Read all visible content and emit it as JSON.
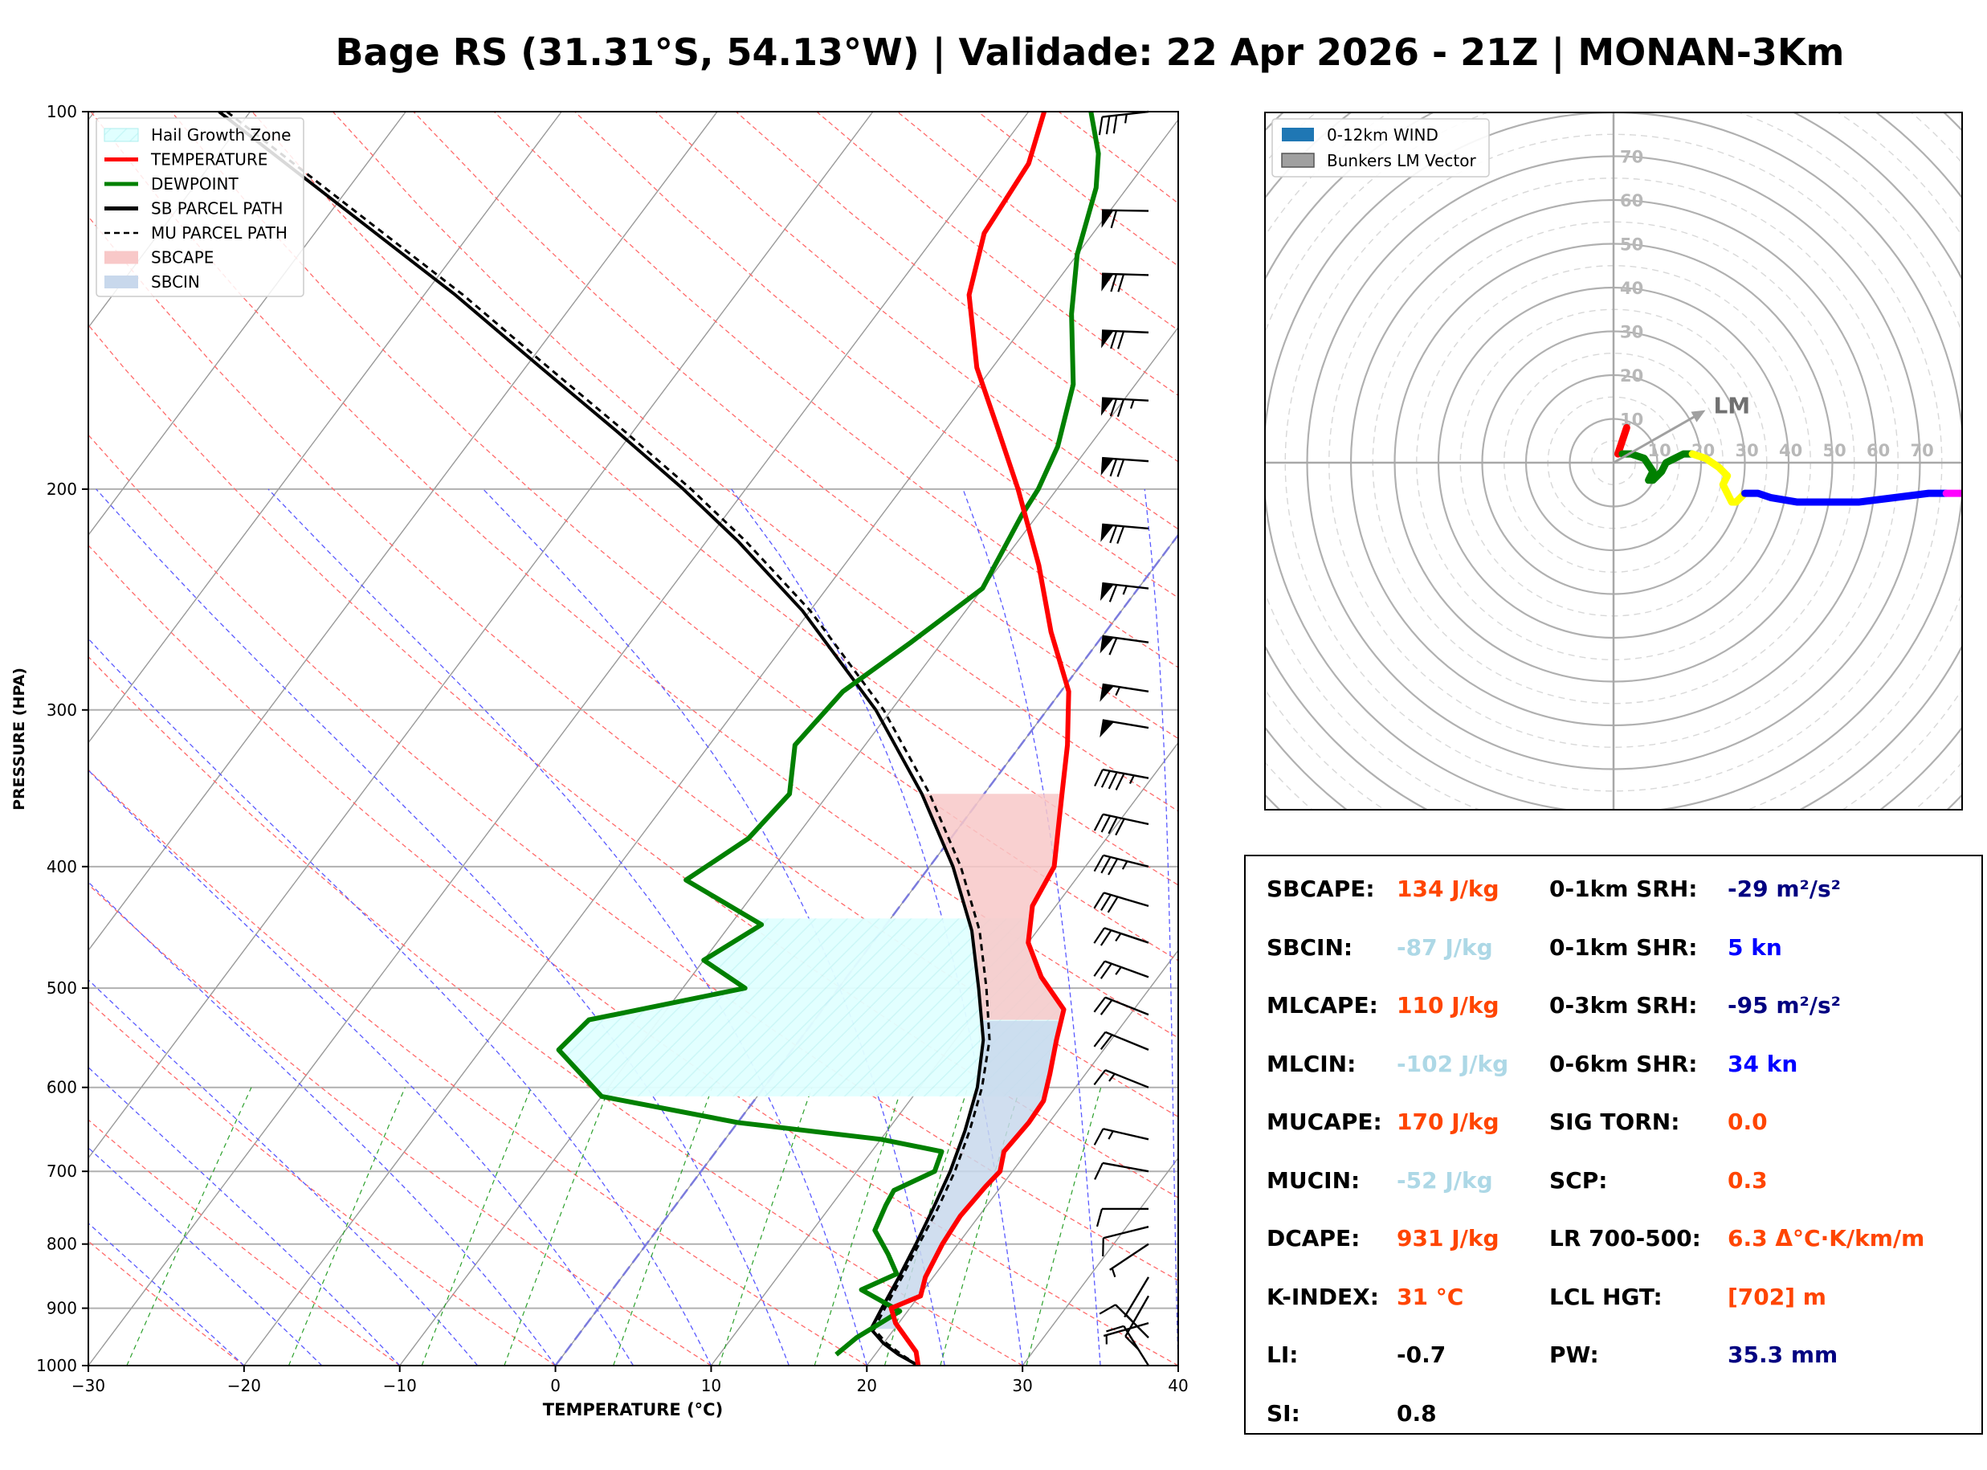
{
  "title": "Bage RS (31.31°S, 54.13°W) | Validade: 22 Apr 2026 - 21Z | MONAN-3Km",
  "skewt": {
    "xlabel": "TEMPERATURE (°C)",
    "ylabel": "PRESSURE (HPA)",
    "x_ticks": [
      "−30",
      "−20",
      "−10",
      "0",
      "10",
      "20",
      "30",
      "40"
    ],
    "y_ticks": [
      "100",
      "200",
      "300",
      "400",
      "500",
      "600",
      "700",
      "800",
      "900",
      "1000"
    ],
    "legend": [
      {
        "label": "Hail Growth Zone",
        "color": "#e0ffff",
        "kind": "patch-hatch"
      },
      {
        "label": "TEMPERATURE",
        "color": "#ff0000",
        "kind": "line"
      },
      {
        "label": "DEWPOINT",
        "color": "#008000",
        "kind": "line"
      },
      {
        "label": "SB PARCEL PATH",
        "color": "#000000",
        "kind": "line"
      },
      {
        "label": "MU PARCEL PATH",
        "color": "#000000",
        "kind": "dash"
      },
      {
        "label": "SBCAPE",
        "color": "#f8c8c8",
        "kind": "patch"
      },
      {
        "label": "SBCIN",
        "color": "#c8d8ec",
        "kind": "patch"
      }
    ]
  },
  "hodograph": {
    "legend": [
      {
        "label": "0-12km WIND",
        "color": "#1f77b4"
      },
      {
        "label": "Bunkers LM Vector",
        "color": "#a0a0a0"
      }
    ],
    "ring_labels": [
      "10",
      "20",
      "30",
      "40",
      "50",
      "60",
      "70"
    ],
    "lm_label": "LM"
  },
  "indices": {
    "left": [
      {
        "label": "SBCAPE:",
        "value": "134 J/kg",
        "color": "#ff4500"
      },
      {
        "label": "SBCIN:",
        "value": "-87 J/kg",
        "color": "#add8e6"
      },
      {
        "label": "MLCAPE:",
        "value": "110 J/kg",
        "color": "#ff4500"
      },
      {
        "label": "MLCIN:",
        "value": "-102 J/kg",
        "color": "#add8e6"
      },
      {
        "label": "MUCAPE:",
        "value": "170 J/kg",
        "color": "#ff4500"
      },
      {
        "label": "MUCIN:",
        "value": "-52 J/kg",
        "color": "#add8e6"
      },
      {
        "label": "DCAPE:",
        "value": "931 J/kg",
        "color": "#ff4500"
      },
      {
        "label": "K-INDEX:",
        "value": "31 °C",
        "color": "#ff4500"
      },
      {
        "label": "LI:",
        "value": "-0.7",
        "color": "#000000"
      },
      {
        "label": "SI:",
        "value": "0.8",
        "color": "#000000"
      }
    ],
    "right": [
      {
        "label": "0-1km SRH:",
        "value": "-29 m²/s²",
        "color": "#000080"
      },
      {
        "label": "0-1km SHR:",
        "value": "5 kn",
        "color": "#0000ff"
      },
      {
        "label": "0-3km SRH:",
        "value": "-95 m²/s²",
        "color": "#000080"
      },
      {
        "label": "0-6km SHR:",
        "value": "34 kn",
        "color": "#0000ff"
      },
      {
        "label": "SIG TORN:",
        "value": "0.0",
        "color": "#ff4500"
      },
      {
        "label": "SCP:",
        "value": "0.3",
        "color": "#ff4500"
      },
      {
        "label": "LR 700-500:",
        "value": "6.3 Δ°C·K/km/m",
        "color": "#ff4500"
      },
      {
        "label": "LCL HGT:",
        "value": "[702] m",
        "color": "#ff4500"
      },
      {
        "label": "PW:",
        "value": "35.3 mm",
        "color": "#000080"
      }
    ]
  },
  "chart_data": [
    {
      "type": "line",
      "xlabel": "TEMPERATURE (°C)",
      "ylabel": "PRESSURE (HPA)",
      "xlim": [
        -30,
        40
      ],
      "ylim": [
        1000,
        100
      ],
      "y_scale": "log",
      "grid": true,
      "legend_position": "top-left",
      "series": [
        {
          "name": "TEMPERATURE",
          "color": "#ff0000",
          "points": [
            [
              1000,
              23.3
            ],
            [
              975,
              22.5
            ],
            [
              925,
              19.8
            ],
            [
              900,
              18.8
            ],
            [
              880,
              20.1
            ],
            [
              850,
              19.5
            ],
            [
              800,
              19.0
            ],
            [
              760,
              18.8
            ],
            [
              720,
              19.0
            ],
            [
              700,
              19.2
            ],
            [
              675,
              18.5
            ],
            [
              640,
              18.7
            ],
            [
              615,
              18.6
            ],
            [
              585,
              17.7
            ],
            [
              550,
              16.5
            ],
            [
              520,
              15.5
            ],
            [
              490,
              12.5
            ],
            [
              460,
              10.0
            ],
            [
              430,
              8.5
            ],
            [
              400,
              8.0
            ],
            [
              350,
              5.0
            ],
            [
              320,
              3.0
            ],
            [
              290,
              0.5
            ],
            [
              260,
              -3.5
            ],
            [
              230,
              -7.5
            ],
            [
              200,
              -12.5
            ],
            [
              180,
              -16.5
            ],
            [
              160,
              -21.0
            ],
            [
              140,
              -25.0
            ],
            [
              125,
              -27.0
            ],
            [
              110,
              -27.5
            ],
            [
              100,
              -29.0
            ]
          ]
        },
        {
          "name": "DEWPOINT",
          "color": "#008000",
          "points": [
            [
              980,
              17.5
            ],
            [
              950,
              18.0
            ],
            [
              920,
              19.0
            ],
            [
              905,
              19.5
            ],
            [
              870,
              16.0
            ],
            [
              845,
              17.5
            ],
            [
              815,
              16.0
            ],
            [
              780,
              14.0
            ],
            [
              745,
              13.5
            ],
            [
              725,
              13.3
            ],
            [
              700,
              15.0
            ],
            [
              675,
              14.5
            ],
            [
              660,
              10.0
            ],
            [
              640,
              0.0
            ],
            [
              610,
              -10.0
            ],
            [
              560,
              -15.0
            ],
            [
              530,
              -14.5
            ],
            [
              500,
              -6.0
            ],
            [
              475,
              -10.0
            ],
            [
              445,
              -8.0
            ],
            [
              410,
              -15.0
            ],
            [
              380,
              -13.0
            ],
            [
              350,
              -12.5
            ],
            [
              320,
              -14.5
            ],
            [
              290,
              -14.0
            ],
            [
              265,
              -12.0
            ],
            [
              240,
              -10.0
            ],
            [
              210,
              -11.0
            ],
            [
              200,
              -11.2
            ],
            [
              185,
              -12.0
            ],
            [
              165,
              -14.0
            ],
            [
              145,
              -17.5
            ],
            [
              130,
              -20.0
            ],
            [
              115,
              -22.0
            ],
            [
              108,
              -23.5
            ],
            [
              100,
              -26.0
            ]
          ]
        },
        {
          "name": "SB PARCEL PATH",
          "color": "#000000",
          "points": [
            [
              1000,
              23.3
            ],
            [
              980,
              21.5
            ],
            [
              960,
              20.0
            ],
            [
              935,
              18.5
            ],
            [
              900,
              18.2
            ],
            [
              850,
              17.8
            ],
            [
              800,
              17.3
            ],
            [
              750,
              16.7
            ],
            [
              700,
              16.0
            ],
            [
              650,
              15.0
            ],
            [
              600,
              13.7
            ],
            [
              550,
              11.8
            ],
            [
              500,
              9.0
            ],
            [
              450,
              5.8
            ],
            [
              400,
              1.5
            ],
            [
              350,
              -4.0
            ],
            [
              300,
              -11.0
            ],
            [
              250,
              -20.5
            ],
            [
              220,
              -28.0
            ],
            [
              200,
              -34.0
            ],
            [
              180,
              -41.0
            ],
            [
              160,
              -49.0
            ],
            [
              140,
              -58.0
            ],
            [
              120,
              -69.0
            ],
            [
              100,
              -82.0
            ]
          ]
        },
        {
          "name": "MU PARCEL PATH",
          "color": "#000000",
          "points": [
            [
              1000,
              23.3
            ],
            [
              980,
              21.7
            ],
            [
              960,
              20.2
            ],
            [
              935,
              18.7
            ],
            [
              900,
              18.4
            ],
            [
              850,
              18.0
            ],
            [
              800,
              17.5
            ],
            [
              750,
              17.0
            ],
            [
              700,
              16.3
            ],
            [
              650,
              15.3
            ],
            [
              600,
              14.0
            ],
            [
              550,
              12.2
            ],
            [
              500,
              9.5
            ],
            [
              450,
              6.3
            ],
            [
              400,
              2.0
            ],
            [
              350,
              -3.5
            ],
            [
              300,
              -10.5
            ],
            [
              250,
              -20.0
            ],
            [
              220,
              -27.5
            ],
            [
              200,
              -33.5
            ],
            [
              180,
              -40.5
            ],
            [
              160,
              -48.5
            ],
            [
              140,
              -57.5
            ],
            [
              120,
              -68.5
            ],
            [
              100,
              -81.5
            ]
          ]
        },
        {
          "name": "Hail Growth Zone",
          "color": "#e0ffff",
          "p_range": [
            440,
            610
          ]
        },
        {
          "name": "SBCAPE",
          "color": "#f8c8c8",
          "p_range": [
            350,
            530
          ]
        },
        {
          "name": "SBCIN",
          "color": "#c8d8ec",
          "p_range": [
            530,
            935
          ]
        }
      ],
      "wind_barbs": [
        {
          "p": 1000,
          "u_kt": 5,
          "v_kt": -8
        },
        {
          "p": 950,
          "u_kt": 6,
          "v_kt": -6
        },
        {
          "p": 925,
          "u_kt": 7,
          "v_kt": 2
        },
        {
          "p": 880,
          "u_kt": 4,
          "v_kt": 7
        },
        {
          "p": 850,
          "u_kt": 3,
          "v_kt": 5
        },
        {
          "p": 800,
          "u_kt": 6,
          "v_kt": 4
        },
        {
          "p": 775,
          "u_kt": 8,
          "v_kt": 2
        },
        {
          "p": 750,
          "u_kt": 9,
          "v_kt": 0
        },
        {
          "p": 700,
          "u_kt": 11,
          "v_kt": -2
        },
        {
          "p": 660,
          "u_kt": 13,
          "v_kt": -3
        },
        {
          "p": 600,
          "u_kt": 15,
          "v_kt": -6
        },
        {
          "p": 560,
          "u_kt": 17,
          "v_kt": -7
        },
        {
          "p": 525,
          "u_kt": 20,
          "v_kt": -8
        },
        {
          "p": 490,
          "u_kt": 22,
          "v_kt": -8
        },
        {
          "p": 460,
          "u_kt": 24,
          "v_kt": -8
        },
        {
          "p": 430,
          "u_kt": 27,
          "v_kt": -8
        },
        {
          "p": 400,
          "u_kt": 32,
          "v_kt": -8
        },
        {
          "p": 370,
          "u_kt": 37,
          "v_kt": -8
        },
        {
          "p": 340,
          "u_kt": 43,
          "v_kt": -8
        },
        {
          "p": 310,
          "u_kt": 48,
          "v_kt": -8
        },
        {
          "p": 290,
          "u_kt": 52,
          "v_kt": -8
        },
        {
          "p": 265,
          "u_kt": 58,
          "v_kt": -8
        },
        {
          "p": 240,
          "u_kt": 63,
          "v_kt": -7
        },
        {
          "p": 215,
          "u_kt": 68,
          "v_kt": -6
        },
        {
          "p": 190,
          "u_kt": 72,
          "v_kt": -5
        },
        {
          "p": 170,
          "u_kt": 74,
          "v_kt": -4
        },
        {
          "p": 150,
          "u_kt": 72,
          "v_kt": -3
        },
        {
          "p": 135,
          "u_kt": 68,
          "v_kt": -2
        },
        {
          "p": 120,
          "u_kt": 60,
          "v_kt": -1
        },
        {
          "p": 100,
          "u_kt": 35,
          "v_kt": 4
        }
      ]
    },
    {
      "type": "line",
      "title": "",
      "r_max": 80,
      "legend_position": "top-left",
      "series": [
        {
          "name": "0-1km",
          "color": "#ff0000",
          "points": [
            [
              1,
              2
            ],
            [
              2,
              5
            ],
            [
              3,
              8
            ]
          ]
        },
        {
          "name": "1-3km",
          "color": "#008000",
          "points": [
            [
              2,
              2
            ],
            [
              4,
              2
            ],
            [
              7,
              1
            ],
            [
              9,
              -2
            ],
            [
              8,
              -4
            ],
            [
              9,
              -4
            ],
            [
              11,
              -2
            ],
            [
              12,
              0
            ],
            [
              14,
              1
            ],
            [
              16,
              2
            ],
            [
              18,
              2
            ]
          ]
        },
        {
          "name": "3-6km",
          "color": "#ffff00",
          "points": [
            [
              18,
              2
            ],
            [
              21,
              1
            ],
            [
              24,
              -1
            ],
            [
              26,
              -3
            ],
            [
              25,
              -5
            ],
            [
              26,
              -7
            ],
            [
              27,
              -9
            ],
            [
              28,
              -9
            ],
            [
              30,
              -7
            ]
          ]
        },
        {
          "name": "6-9km",
          "color": "#0000ff",
          "points": [
            [
              30,
              -7
            ],
            [
              33,
              -7
            ],
            [
              36,
              -8
            ],
            [
              42,
              -9
            ],
            [
              48,
              -9
            ],
            [
              56,
              -9
            ],
            [
              64,
              -8
            ],
            [
              72,
              -7
            ],
            [
              76,
              -7
            ]
          ]
        },
        {
          "name": "9-12km",
          "color": "#ff00ff",
          "points": [
            [
              76,
              -7
            ],
            [
              80,
              -7
            ]
          ]
        },
        {
          "name": "Bunkers LM Vector",
          "color": "#a0a0a0",
          "points": [
            [
              0,
              0
            ],
            [
              21,
              12
            ]
          ]
        }
      ]
    }
  ]
}
